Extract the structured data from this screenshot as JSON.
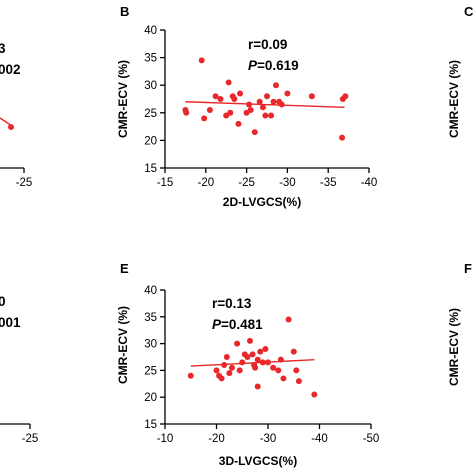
{
  "chart_data": [
    {
      "panel": "A",
      "type": "scatter",
      "xlabel": "",
      "ylabel": "",
      "visible_x_tick_labels": [
        "-25"
      ],
      "stats_fragments": [
        "3",
        "002"
      ],
      "series": [
        {
          "x": [
            -23.0
          ],
          "y": [
            22.0
          ]
        }
      ]
    },
    {
      "panel": "B",
      "type": "scatter",
      "xlabel": "2D-LVGCS(%)",
      "ylabel": "CMR-ECV (%)",
      "xlim": [
        -15,
        -40
      ],
      "ylim": [
        15,
        40
      ],
      "x_ticks": [
        -15,
        -20,
        -25,
        -30,
        -35,
        -40
      ],
      "y_ticks": [
        15,
        20,
        25,
        30,
        35,
        40
      ],
      "x_tick_labels": [
        "-15",
        "-20",
        "-25",
        "-30",
        "-35",
        "-40"
      ],
      "y_tick_labels": [
        "15",
        "20",
        "25",
        "30",
        "35",
        "40"
      ],
      "r_text": "r=0.09",
      "p_label": "P",
      "p_value": "=0.619",
      "fit_line": {
        "x": [
          -17.5,
          -37.0
        ],
        "y": [
          27.0,
          26.0
        ]
      },
      "series": [
        {
          "x": [
            -17.5,
            -17.6,
            -19.5,
            -19.8,
            -20.5,
            -21.2,
            -21.8,
            -22.5,
            -22.8,
            -23.0,
            -23.3,
            -23.5,
            -24.0,
            -24.2,
            -25.0,
            -25.3,
            -25.5,
            -26.0,
            -26.6,
            -27.0,
            -27.3,
            -27.5,
            -28.0,
            -28.3,
            -28.6,
            -29.0,
            -29.3,
            -30.0,
            -33.0,
            -36.8,
            -37.1,
            -36.7
          ],
          "y": [
            25.5,
            25.0,
            34.5,
            24.0,
            25.5,
            28.0,
            27.5,
            24.5,
            30.5,
            25.0,
            28.0,
            27.5,
            23.0,
            28.5,
            25.0,
            26.5,
            25.5,
            21.5,
            27.0,
            26.0,
            24.5,
            28.0,
            24.5,
            27.0,
            30.0,
            27.0,
            26.5,
            28.5,
            28.0,
            27.5,
            28.0,
            20.5
          ]
        }
      ]
    },
    {
      "panel": "C",
      "type": "scatter",
      "xlabel": "",
      "ylabel": "CMR-ECV (%)",
      "series": []
    },
    {
      "panel": "D",
      "type": "scatter",
      "xlabel": "",
      "ylabel": "",
      "visible_x_tick_labels": [
        "-25"
      ],
      "stats_fragments": [
        "0",
        "001"
      ],
      "series": []
    },
    {
      "panel": "E",
      "type": "scatter",
      "xlabel": "3D-LVGCS(%)",
      "ylabel": "CMR-ECV (%)",
      "xlim": [
        -10,
        -50
      ],
      "ylim": [
        15,
        40
      ],
      "x_ticks": [
        -10,
        -20,
        -30,
        -40,
        -50
      ],
      "y_ticks": [
        15,
        20,
        25,
        30,
        35,
        40
      ],
      "x_tick_labels": [
        "-10",
        "-20",
        "-30",
        "-40",
        "-50"
      ],
      "y_tick_labels": [
        "15",
        "20",
        "25",
        "30",
        "35",
        "40"
      ],
      "r_text": "r=0.13",
      "p_label": "P",
      "p_value": "=0.481",
      "fit_line": {
        "x": [
          -15.0,
          -39.0
        ],
        "y": [
          25.8,
          27.0
        ]
      },
      "series": [
        {
          "x": [
            -15.0,
            -20.0,
            -20.5,
            -21.0,
            -21.5,
            -22.0,
            -22.5,
            -23.0,
            -24.0,
            -24.5,
            -25.0,
            -25.5,
            -26.0,
            -26.5,
            -27.0,
            -27.3,
            -27.5,
            -28.0,
            -28.0,
            -28.5,
            -29.0,
            -29.5,
            -30.0,
            -31.0,
            -32.0,
            -32.5,
            -33.0,
            -34.0,
            -35.0,
            -35.5,
            -36.0,
            -39.0
          ],
          "y": [
            24.0,
            25.0,
            24.0,
            23.5,
            26.0,
            27.5,
            24.5,
            25.5,
            30.0,
            25.0,
            26.5,
            28.0,
            27.5,
            30.5,
            28.0,
            26.0,
            25.5,
            22.0,
            27.0,
            28.5,
            26.5,
            29.0,
            26.5,
            25.5,
            25.0,
            27.0,
            23.5,
            34.5,
            28.5,
            25.0,
            23.0,
            20.5
          ]
        }
      ]
    },
    {
      "panel": "F",
      "type": "scatter",
      "xlabel": "",
      "ylabel": "CMR-ECV (%)",
      "series": []
    }
  ]
}
